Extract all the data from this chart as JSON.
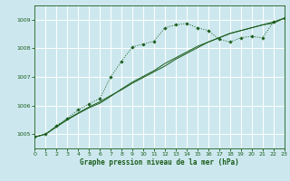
{
  "title": "Graphe pression niveau de la mer (hPa)",
  "bg_color": "#cce8ee",
  "grid_color": "#ffffff",
  "line_color": "#1a5c1a",
  "xlim": [
    0,
    23
  ],
  "ylim": [
    1004.5,
    1009.5
  ],
  "yticks": [
    1005,
    1006,
    1007,
    1008,
    1009
  ],
  "xticks": [
    0,
    1,
    2,
    3,
    4,
    5,
    6,
    7,
    8,
    9,
    10,
    11,
    12,
    13,
    14,
    15,
    16,
    17,
    18,
    19,
    20,
    21,
    22,
    23
  ],
  "series1_x": [
    0,
    1,
    2,
    3,
    4,
    5,
    6,
    7,
    8,
    9,
    10,
    11,
    12,
    13,
    14,
    15,
    16,
    17,
    18,
    19,
    20,
    21,
    22,
    23
  ],
  "series1_y": [
    1004.9,
    1005.0,
    1005.3,
    1005.55,
    1005.85,
    1006.05,
    1006.25,
    1007.0,
    1007.55,
    1008.05,
    1008.15,
    1008.25,
    1008.72,
    1008.82,
    1008.87,
    1008.72,
    1008.62,
    1008.32,
    1008.22,
    1008.37,
    1008.42,
    1008.37,
    1008.92,
    1009.05
  ],
  "series2_x": [
    0,
    1,
    2,
    3,
    4,
    5,
    6,
    7,
    8,
    9,
    10,
    11,
    12,
    13,
    14,
    15,
    16,
    17,
    18,
    19,
    20,
    21,
    22,
    23
  ],
  "series2_y": [
    1004.9,
    1005.0,
    1005.25,
    1005.5,
    1005.72,
    1005.92,
    1006.08,
    1006.32,
    1006.58,
    1006.82,
    1007.02,
    1007.22,
    1007.47,
    1007.67,
    1007.87,
    1008.07,
    1008.22,
    1008.37,
    1008.52,
    1008.62,
    1008.72,
    1008.82,
    1008.92,
    1009.05
  ],
  "series3_x": [
    0,
    1,
    2,
    3,
    4,
    5,
    6,
    7,
    8,
    9,
    10,
    11,
    12,
    13,
    14,
    15,
    16,
    17,
    18,
    19,
    20,
    21,
    22,
    23
  ],
  "series3_y": [
    1004.9,
    1005.0,
    1005.27,
    1005.52,
    1005.74,
    1005.95,
    1006.13,
    1006.35,
    1006.55,
    1006.78,
    1006.98,
    1007.18,
    1007.38,
    1007.62,
    1007.82,
    1008.02,
    1008.22,
    1008.37,
    1008.52,
    1008.62,
    1008.72,
    1008.82,
    1008.88,
    1009.05
  ]
}
